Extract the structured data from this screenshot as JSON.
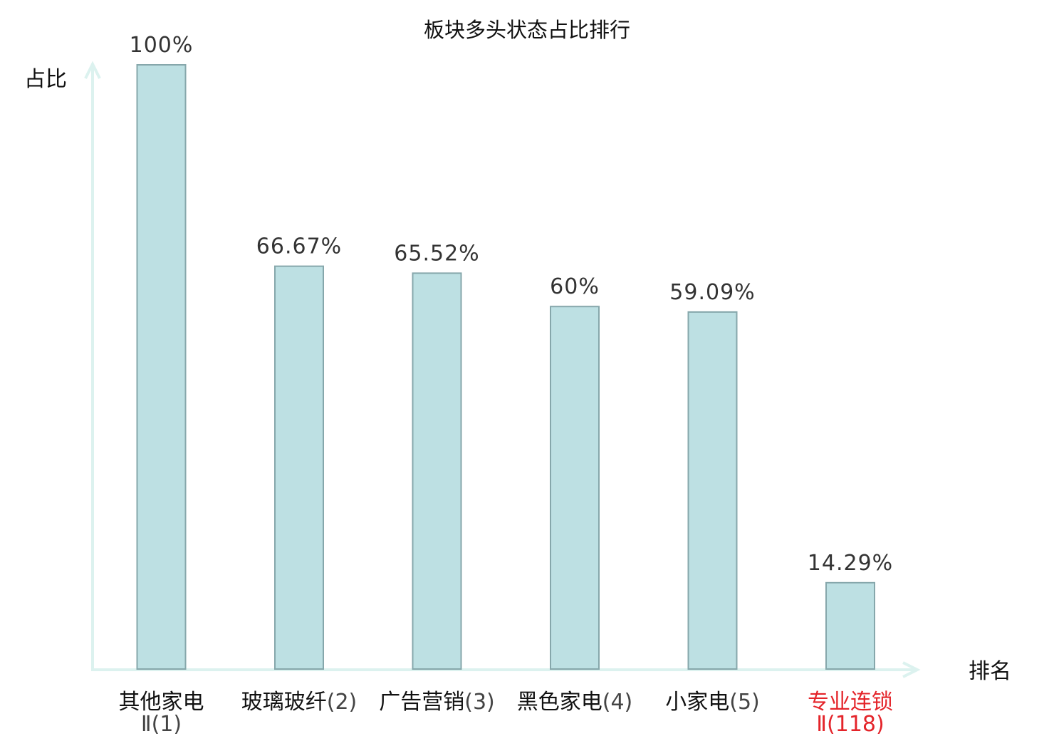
{
  "chart_data": {
    "type": "bar",
    "title": "板块多头状态占比排行",
    "ylabel": "占比",
    "xlabel": "排名",
    "ylim": [
      0,
      100
    ],
    "grid": false,
    "legend": false,
    "categories": [
      {
        "name": "其他家电",
        "rank": "Ⅱ(1)",
        "label": "100%",
        "value": 100,
        "highlight": false
      },
      {
        "name": "玻璃玻纤",
        "rank": "(2)",
        "label": "66.67%",
        "value": 66.67,
        "highlight": false
      },
      {
        "name": "广告营销",
        "rank": "(3)",
        "label": "65.52%",
        "value": 65.52,
        "highlight": false
      },
      {
        "name": "黑色家电",
        "rank": "(4)",
        "label": "60%",
        "value": 60,
        "highlight": false
      },
      {
        "name": "小家电",
        "rank": "(5)",
        "label": "59.09%",
        "value": 59.09,
        "highlight": false
      },
      {
        "name": "专业连锁",
        "rank": "Ⅱ(118)",
        "label": "14.29%",
        "value": 14.29,
        "highlight": true
      }
    ],
    "colors": {
      "bar_fill": "#bde0e3",
      "bar_stroke": "#86a7ab",
      "axis": "#dcf2ef",
      "text": "#111111",
      "rank_text": "#444444",
      "highlight": "#e4242a"
    }
  }
}
